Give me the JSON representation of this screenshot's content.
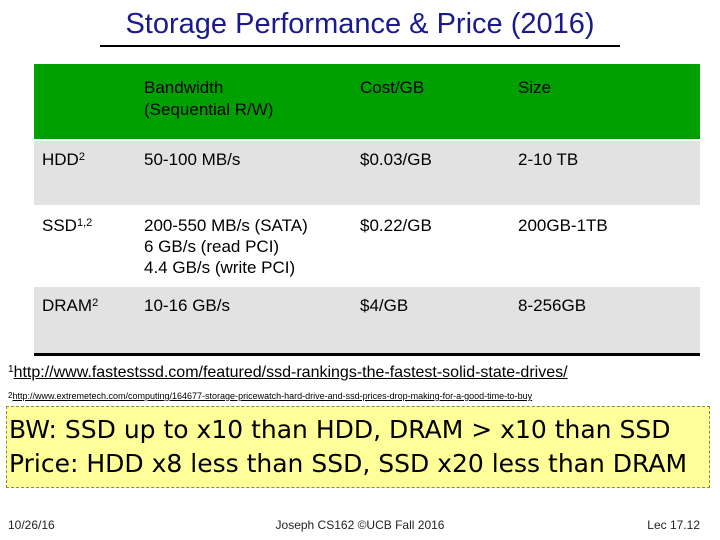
{
  "title": "Storage Performance & Price (2016)",
  "table": {
    "headers": [
      "",
      "Bandwidth (Sequential R/W)",
      "Cost/GB",
      "Size"
    ],
    "header_bandwidth_line1": "Bandwidth",
    "header_bandwidth_line2": "(Sequential R/W)",
    "rows": [
      {
        "name": "HDD",
        "sup": "2",
        "bandwidth": [
          "50-100 MB/s"
        ],
        "cost": "$0.03/GB",
        "size": "2-10 TB"
      },
      {
        "name": "SSD",
        "sup": "1,2",
        "bandwidth": [
          "200-550 MB/s (SATA)",
          "6 GB/s (read PCI)",
          "4.4 GB/s (write PCI)"
        ],
        "cost": "$0.22/GB",
        "size": "200GB-1TB"
      },
      {
        "name": "DRAM",
        "sup": "2",
        "bandwidth": [
          "10-16 GB/s"
        ],
        "cost": "$4/GB",
        "size": "8-256GB"
      }
    ]
  },
  "footnotes": [
    {
      "num": "1",
      "url": "http://www.fastestssd.com/featured/ssd-rankings-the-fastest-solid-state-drives/"
    },
    {
      "num": "2",
      "url": "http://www.extremetech.com/computing/164677-storage-pricewatch-hard-drive-and-ssd-prices-drop-making-for-a-good-time-to-buy"
    }
  ],
  "callout": {
    "line1": "BW: SSD up to x10 than HDD, DRAM > x10 than SSD",
    "line2": "Price: HDD x8 less than SSD, SSD x20 less than DRAM"
  },
  "footer": {
    "date": "10/26/16",
    "center": "Joseph CS162 ©UCB Fall 2016",
    "right": "Lec 17.12"
  }
}
